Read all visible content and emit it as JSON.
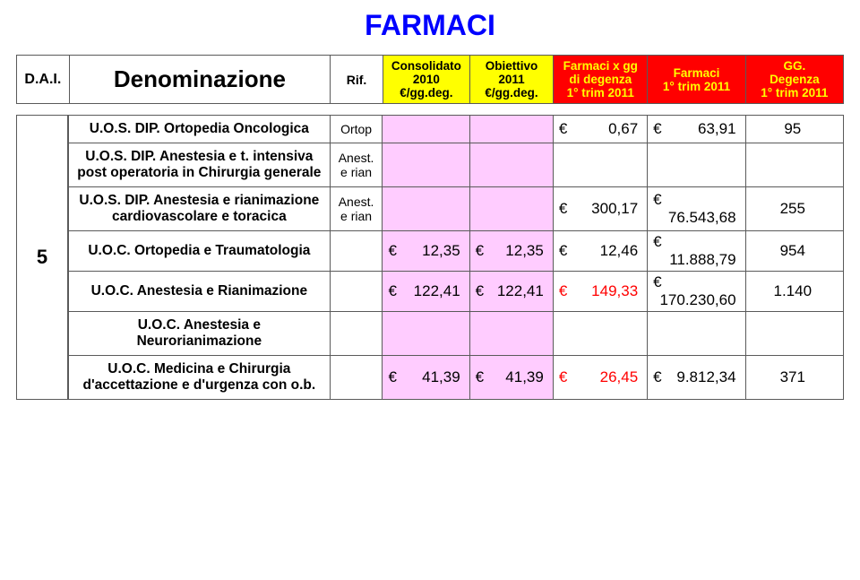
{
  "title": {
    "text": "FARMACI",
    "color": "#0000ff"
  },
  "header": {
    "dai": "D.A.I.",
    "denom": "Denominazione",
    "rif": "Rif.",
    "cons": {
      "label_line1": "Consolidato",
      "label_line2": "2010",
      "label_line3": "€/gg.deg.",
      "bg": "#ffff00"
    },
    "ob": {
      "label_line1": "Obiettivo",
      "label_line2": "2011",
      "label_line3": "€/gg.deg.",
      "bg": "#ffff00"
    },
    "fgg": {
      "label_line1": "Farmaci x gg",
      "label_line2": "di degenza",
      "label_line3": "1° trim 2011",
      "bg": "#ff0000",
      "fg": "#ffff00"
    },
    "f1t": {
      "label_line1": "Farmaci",
      "label_line2": "1° trim 2011",
      "bg": "#ff0000",
      "fg": "#ffff00"
    },
    "gg": {
      "label_line1": "GG.",
      "label_line2": "Degenza",
      "label_line3": "1° trim 2011",
      "bg": "#ff0000",
      "fg": "#ffff00"
    }
  },
  "group_num": "5",
  "pink_bg": "#ffccff",
  "rows": [
    {
      "denom": "U.O.S. DIP. Ortopedia Oncologica",
      "rif": "Ortop",
      "cons": "",
      "ob": "",
      "fgg": "0,67",
      "f1t": "63,91",
      "gg": "95",
      "cons_bg": "#ffccff",
      "ob_bg": "#ffccff"
    },
    {
      "denom": "U.O.S. DIP. Anestesia e t. intensiva post operatoria in Chirurgia generale",
      "rif": "Anest. e rian",
      "cons": "",
      "ob": "",
      "fgg": "",
      "f1t": "",
      "gg": "",
      "cons_bg": "#ffccff",
      "ob_bg": "#ffccff"
    },
    {
      "denom": "U.O.S. DIP. Anestesia e rianimazione cardiovascolare e toracica",
      "rif": "Anest. e rian",
      "cons": "",
      "ob": "",
      "fgg": "300,17",
      "f1t": "76.543,68",
      "gg": "255",
      "cons_bg": "#ffccff",
      "ob_bg": "#ffccff"
    },
    {
      "denom": "U.O.C. Ortopedia e Traumatologia",
      "rif": "",
      "cons": "12,35",
      "ob": "12,35",
      "fgg": "12,46",
      "f1t": "11.888,79",
      "gg": "954",
      "cons_bg": "#ffccff",
      "ob_bg": "#ffccff"
    },
    {
      "denom": "U.O.C. Anestesia e Rianimazione",
      "rif": "",
      "cons": "122,41",
      "ob": "122,41",
      "fgg": "149,33",
      "fgg_red": true,
      "f1t": "170.230,60",
      "gg": "1.140",
      "cons_bg": "#ffccff",
      "ob_bg": "#ffccff"
    },
    {
      "denom": "U.O.C. Anestesia e Neurorianimazione",
      "rif": "",
      "cons": "",
      "ob": "",
      "fgg": "",
      "f1t": "",
      "gg": "",
      "cons_bg": "#ffccff",
      "ob_bg": "#ffccff"
    },
    {
      "denom": "U.O.C. Medicina e Chirurgia d'accettazione e d'urgenza con o.b.",
      "rif": "",
      "cons": "41,39",
      "ob": "41,39",
      "fgg": "26,45",
      "fgg_red": true,
      "f1t": "9.812,34",
      "gg": "371",
      "cons_bg": "#ffccff",
      "ob_bg": "#ffccff"
    }
  ]
}
